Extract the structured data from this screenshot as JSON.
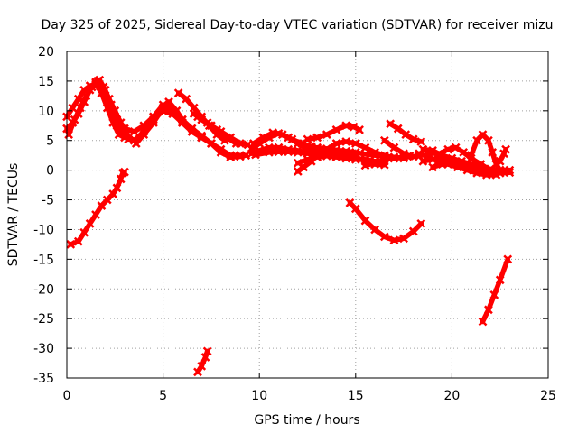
{
  "chart_data": {
    "type": "scatter",
    "title": "Day 325 of 2025, Sidereal Day-to-day VTEC variation (SDTVAR) for receiver mizu",
    "xlabel": "GPS time / hours",
    "ylabel": "SDTVAR / TECUs",
    "xlim": [
      0,
      25
    ],
    "ylim": [
      -35,
      20
    ],
    "xticks": [
      "0",
      "5",
      "10",
      "15",
      "20",
      "25"
    ],
    "yticks": [
      "20",
      "15",
      "10",
      "5",
      "0",
      "-5",
      "-10",
      "-15",
      "-20",
      "-25",
      "-30",
      "-35"
    ],
    "grid": true,
    "series_color": "#ff0000",
    "series": [
      {
        "name": "trace-1",
        "points": [
          [
            0.0,
            7.0
          ],
          [
            0.3,
            8.0
          ],
          [
            0.6,
            9.5
          ],
          [
            0.9,
            11.5
          ],
          [
            1.2,
            13.5
          ],
          [
            1.5,
            14.8
          ],
          [
            1.7,
            15.2
          ],
          [
            2.0,
            13.5
          ],
          [
            2.3,
            11.0
          ],
          [
            2.6,
            8.5
          ],
          [
            2.9,
            6.5
          ],
          [
            3.2,
            5.2
          ]
        ]
      },
      {
        "name": "trace-2",
        "points": [
          [
            0.0,
            9.0
          ],
          [
            0.3,
            10.5
          ],
          [
            0.6,
            12.0
          ],
          [
            0.9,
            13.5
          ],
          [
            1.2,
            14.2
          ],
          [
            1.5,
            14.5
          ],
          [
            1.8,
            13.0
          ],
          [
            2.1,
            10.5
          ],
          [
            2.4,
            8.0
          ],
          [
            2.7,
            6.0
          ],
          [
            3.0,
            5.5
          ]
        ]
      },
      {
        "name": "trace-3",
        "points": [
          [
            0.1,
            6.0
          ],
          [
            0.4,
            8.5
          ],
          [
            0.7,
            10.5
          ],
          [
            1.0,
            12.5
          ],
          [
            1.3,
            14.0
          ],
          [
            1.6,
            15.0
          ],
          [
            1.9,
            14.0
          ],
          [
            2.2,
            12.0
          ],
          [
            2.5,
            10.0
          ],
          [
            2.8,
            8.0
          ],
          [
            3.1,
            6.5
          ]
        ]
      },
      {
        "name": "trace-4",
        "points": [
          [
            2.6,
            7.5
          ],
          [
            3.0,
            7.0
          ],
          [
            3.5,
            6.5
          ],
          [
            4.0,
            7.5
          ],
          [
            4.5,
            9.0
          ],
          [
            5.0,
            10.5
          ],
          [
            5.3,
            11.5
          ],
          [
            5.7,
            10.0
          ],
          [
            6.0,
            8.5
          ]
        ]
      },
      {
        "name": "trace-5",
        "points": [
          [
            3.0,
            6.0
          ],
          [
            3.5,
            5.0
          ],
          [
            4.0,
            6.5
          ],
          [
            4.5,
            8.5
          ],
          [
            5.0,
            10.0
          ],
          [
            5.5,
            9.5
          ],
          [
            6.0,
            8.0
          ],
          [
            6.5,
            6.5
          ],
          [
            7.0,
            5.5
          ]
        ]
      },
      {
        "name": "trace-6",
        "points": [
          [
            3.6,
            4.5
          ],
          [
            4.0,
            6.0
          ],
          [
            4.5,
            8.0
          ],
          [
            5.0,
            10.5
          ],
          [
            5.5,
            9.5
          ],
          [
            6.0,
            8.0
          ],
          [
            6.5,
            6.5
          ],
          [
            7.0,
            5.5
          ],
          [
            7.5,
            4.5
          ],
          [
            8.0,
            3.0
          ],
          [
            8.5,
            2.2
          ],
          [
            9.0,
            2.3
          ],
          [
            9.3,
            2.5
          ]
        ]
      },
      {
        "name": "trace-7",
        "points": [
          [
            4.5,
            9.0
          ],
          [
            5.0,
            11.0
          ],
          [
            5.5,
            10.0
          ],
          [
            6.0,
            8.5
          ],
          [
            6.5,
            7.0
          ],
          [
            7.0,
            5.8
          ],
          [
            7.5,
            4.5
          ],
          [
            8.0,
            3.5
          ],
          [
            8.5,
            2.5
          ],
          [
            9.0,
            2.5
          ]
        ]
      },
      {
        "name": "trace-8",
        "points": [
          [
            5.8,
            13.0
          ],
          [
            6.2,
            12.0
          ],
          [
            6.6,
            10.5
          ],
          [
            7.0,
            9.0
          ],
          [
            7.4,
            7.5
          ],
          [
            7.8,
            6.0
          ],
          [
            8.2,
            5.0
          ]
        ]
      },
      {
        "name": "trace-9",
        "points": [
          [
            6.6,
            9.5
          ],
          [
            7.0,
            8.5
          ],
          [
            7.5,
            7.5
          ],
          [
            8.0,
            6.5
          ],
          [
            8.5,
            5.5
          ],
          [
            9.0,
            4.5
          ],
          [
            9.4,
            4.3
          ]
        ]
      },
      {
        "name": "trace-10",
        "points": [
          [
            6.8,
            9.0
          ],
          [
            7.3,
            8.0
          ],
          [
            7.8,
            6.8
          ],
          [
            8.3,
            5.5
          ],
          [
            8.8,
            4.5
          ]
        ]
      },
      {
        "name": "trace-11",
        "points": [
          [
            9.6,
            3.5
          ],
          [
            10.0,
            4.5
          ],
          [
            10.5,
            5.5
          ],
          [
            11.0,
            6.2
          ],
          [
            11.5,
            5.5
          ],
          [
            12.0,
            4.5
          ],
          [
            12.5,
            3.5
          ],
          [
            13.0,
            3.0
          ]
        ]
      },
      {
        "name": "trace-12",
        "points": [
          [
            9.7,
            4.5
          ],
          [
            10.2,
            5.5
          ],
          [
            10.7,
            6.3
          ],
          [
            11.2,
            6.0
          ],
          [
            11.7,
            5.2
          ],
          [
            12.2,
            4.5
          ],
          [
            12.7,
            4.0
          ],
          [
            13.2,
            3.5
          ],
          [
            13.7,
            3.0
          ],
          [
            14.2,
            2.5
          ]
        ]
      },
      {
        "name": "trace-13",
        "points": [
          [
            9.6,
            2.8
          ],
          [
            10.0,
            3.3
          ],
          [
            10.5,
            3.8
          ],
          [
            11.0,
            3.8
          ],
          [
            11.5,
            3.5
          ],
          [
            12.0,
            3.3
          ],
          [
            12.5,
            3.0
          ],
          [
            13.0,
            2.8
          ],
          [
            13.5,
            2.5
          ],
          [
            14.0,
            2.3
          ],
          [
            14.5,
            2.0
          ],
          [
            15.0,
            1.8
          ],
          [
            15.5,
            1.8
          ],
          [
            16.0,
            1.5
          ],
          [
            16.5,
            1.5
          ]
        ]
      },
      {
        "name": "trace-14",
        "points": [
          [
            9.8,
            2.6
          ],
          [
            10.5,
            3.0
          ],
          [
            11.0,
            3.1
          ],
          [
            11.5,
            3.1
          ],
          [
            12.0,
            3.0
          ],
          [
            12.5,
            2.8
          ],
          [
            13.0,
            2.6
          ],
          [
            13.5,
            2.4
          ],
          [
            14.0,
            2.2
          ],
          [
            14.5,
            2.0
          ],
          [
            15.0,
            1.8
          ]
        ]
      },
      {
        "name": "trace-15",
        "points": [
          [
            12.0,
            1.2
          ],
          [
            12.5,
            1.8
          ],
          [
            13.0,
            2.2
          ],
          [
            13.5,
            2.4
          ],
          [
            14.0,
            2.6
          ],
          [
            14.5,
            2.5
          ],
          [
            15.0,
            2.2
          ],
          [
            15.5,
            1.5
          ],
          [
            16.0,
            1.0
          ],
          [
            16.5,
            0.9
          ]
        ]
      },
      {
        "name": "trace-16",
        "points": [
          [
            12.0,
            -0.2
          ],
          [
            12.3,
            0.5
          ],
          [
            12.7,
            1.5
          ],
          [
            13.0,
            2.5
          ],
          [
            13.5,
            3.5
          ],
          [
            14.0,
            4.5
          ],
          [
            14.5,
            4.8
          ],
          [
            15.0,
            4.5
          ],
          [
            15.5,
            3.8
          ],
          [
            16.0,
            3.0
          ],
          [
            16.5,
            2.5
          ],
          [
            17.0,
            2.0
          ],
          [
            17.5,
            2.2
          ]
        ]
      },
      {
        "name": "trace-17",
        "points": [
          [
            12.5,
            5.2
          ],
          [
            13.0,
            5.5
          ],
          [
            13.5,
            6.0
          ],
          [
            14.0,
            6.8
          ],
          [
            14.5,
            7.5
          ],
          [
            14.9,
            7.3
          ],
          [
            15.2,
            6.8
          ]
        ]
      },
      {
        "name": "trace-18",
        "points": [
          [
            13.0,
            3.8
          ],
          [
            13.5,
            3.6
          ],
          [
            14.0,
            3.4
          ],
          [
            14.5,
            3.2
          ],
          [
            15.0,
            3.0
          ],
          [
            15.5,
            2.7
          ],
          [
            16.0,
            2.5
          ],
          [
            16.5,
            2.3
          ],
          [
            17.0,
            2.2
          ],
          [
            17.5,
            2.0
          ]
        ]
      },
      {
        "name": "trace-19",
        "points": [
          [
            15.5,
            0.8
          ],
          [
            16.0,
            1.2
          ],
          [
            16.5,
            1.8
          ],
          [
            17.0,
            2.0
          ],
          [
            17.5,
            2.2
          ],
          [
            18.0,
            2.3
          ],
          [
            18.3,
            2.4
          ]
        ]
      },
      {
        "name": "trace-20",
        "points": [
          [
            16.5,
            5.0
          ],
          [
            17.0,
            3.8
          ],
          [
            17.5,
            2.8
          ],
          [
            17.8,
            2.4
          ]
        ]
      },
      {
        "name": "trace-21",
        "points": [
          [
            16.8,
            7.8
          ],
          [
            17.2,
            7.0
          ],
          [
            17.6,
            6.0
          ],
          [
            18.0,
            5.2
          ],
          [
            18.4,
            4.8
          ]
        ]
      },
      {
        "name": "trace-22",
        "points": [
          [
            14.7,
            -5.5
          ],
          [
            15.0,
            -6.5
          ],
          [
            15.5,
            -8.5
          ],
          [
            16.0,
            -10.0
          ],
          [
            16.5,
            -11.2
          ],
          [
            17.0,
            -11.8
          ],
          [
            17.5,
            -11.5
          ],
          [
            18.0,
            -10.3
          ],
          [
            18.4,
            -9.0
          ]
        ]
      },
      {
        "name": "trace-23",
        "points": [
          [
            18.5,
            3.5
          ],
          [
            19.0,
            3.3
          ],
          [
            19.5,
            2.5
          ],
          [
            20.0,
            2.0
          ],
          [
            20.5,
            1.5
          ],
          [
            21.0,
            1.0
          ],
          [
            21.5,
            0.5
          ],
          [
            22.0,
            0.2
          ],
          [
            22.5,
            0.0
          ],
          [
            23.0,
            0.0
          ]
        ]
      },
      {
        "name": "trace-24",
        "points": [
          [
            18.3,
            2.8
          ],
          [
            18.8,
            2.2
          ],
          [
            19.3,
            1.5
          ],
          [
            19.8,
            1.0
          ],
          [
            20.3,
            0.5
          ],
          [
            20.8,
            0.0
          ],
          [
            21.3,
            -0.5
          ],
          [
            21.8,
            -0.8
          ],
          [
            22.3,
            -0.8
          ]
        ]
      },
      {
        "name": "trace-25",
        "points": [
          [
            18.8,
            3.0
          ],
          [
            19.3,
            2.7
          ],
          [
            19.8,
            3.5
          ],
          [
            20.2,
            3.8
          ],
          [
            20.6,
            3.0
          ],
          [
            21.0,
            2.0
          ],
          [
            21.5,
            1.0
          ],
          [
            22.0,
            0.0
          ],
          [
            22.5,
            -0.5
          ],
          [
            23.0,
            -0.4
          ]
        ]
      },
      {
        "name": "trace-26",
        "points": [
          [
            18.5,
            1.5
          ],
          [
            19.0,
            1.8
          ],
          [
            19.5,
            2.0
          ],
          [
            20.0,
            1.5
          ],
          [
            20.5,
            1.0
          ],
          [
            21.0,
            0.5
          ],
          [
            21.5,
            -0.2
          ],
          [
            22.0,
            -0.5
          ],
          [
            22.5,
            -0.3
          ]
        ]
      },
      {
        "name": "trace-27",
        "points": [
          [
            19.0,
            0.5
          ],
          [
            19.5,
            1.0
          ],
          [
            20.0,
            1.3
          ],
          [
            20.5,
            1.0
          ],
          [
            21.0,
            0.3
          ],
          [
            21.5,
            -0.3
          ],
          [
            22.0,
            -0.5
          ]
        ]
      },
      {
        "name": "trace-28",
        "points": [
          [
            21.0,
            2.5
          ],
          [
            21.3,
            5.0
          ],
          [
            21.6,
            6.0
          ],
          [
            21.9,
            5.0
          ],
          [
            22.1,
            3.0
          ],
          [
            22.3,
            1.0
          ],
          [
            22.5,
            0.0
          ]
        ]
      },
      {
        "name": "trace-29",
        "points": [
          [
            22.3,
            1.0
          ],
          [
            22.5,
            1.5
          ],
          [
            22.7,
            2.8
          ],
          [
            22.8,
            3.5
          ]
        ]
      },
      {
        "name": "trace-30",
        "points": [
          [
            0.2,
            -12.5
          ],
          [
            0.6,
            -12.0
          ],
          [
            0.9,
            -10.5
          ],
          [
            1.2,
            -9.0
          ],
          [
            1.5,
            -7.5
          ],
          [
            1.8,
            -6.0
          ],
          [
            2.1,
            -5.0
          ],
          [
            2.4,
            -4.0
          ],
          [
            2.6,
            -3.0
          ],
          [
            2.8,
            -1.5
          ],
          [
            2.9,
            -0.5
          ],
          [
            3.0,
            -0.3
          ]
        ]
      },
      {
        "name": "trace-31",
        "points": [
          [
            21.6,
            -25.5
          ],
          [
            21.9,
            -23.5
          ],
          [
            22.2,
            -21.0
          ],
          [
            22.5,
            -18.5
          ],
          [
            22.9,
            -15.0
          ]
        ]
      },
      {
        "name": "trace-32",
        "points": [
          [
            6.8,
            -34.0
          ],
          [
            7.0,
            -33.0
          ],
          [
            7.2,
            -31.5
          ],
          [
            7.3,
            -30.5
          ]
        ]
      }
    ]
  }
}
